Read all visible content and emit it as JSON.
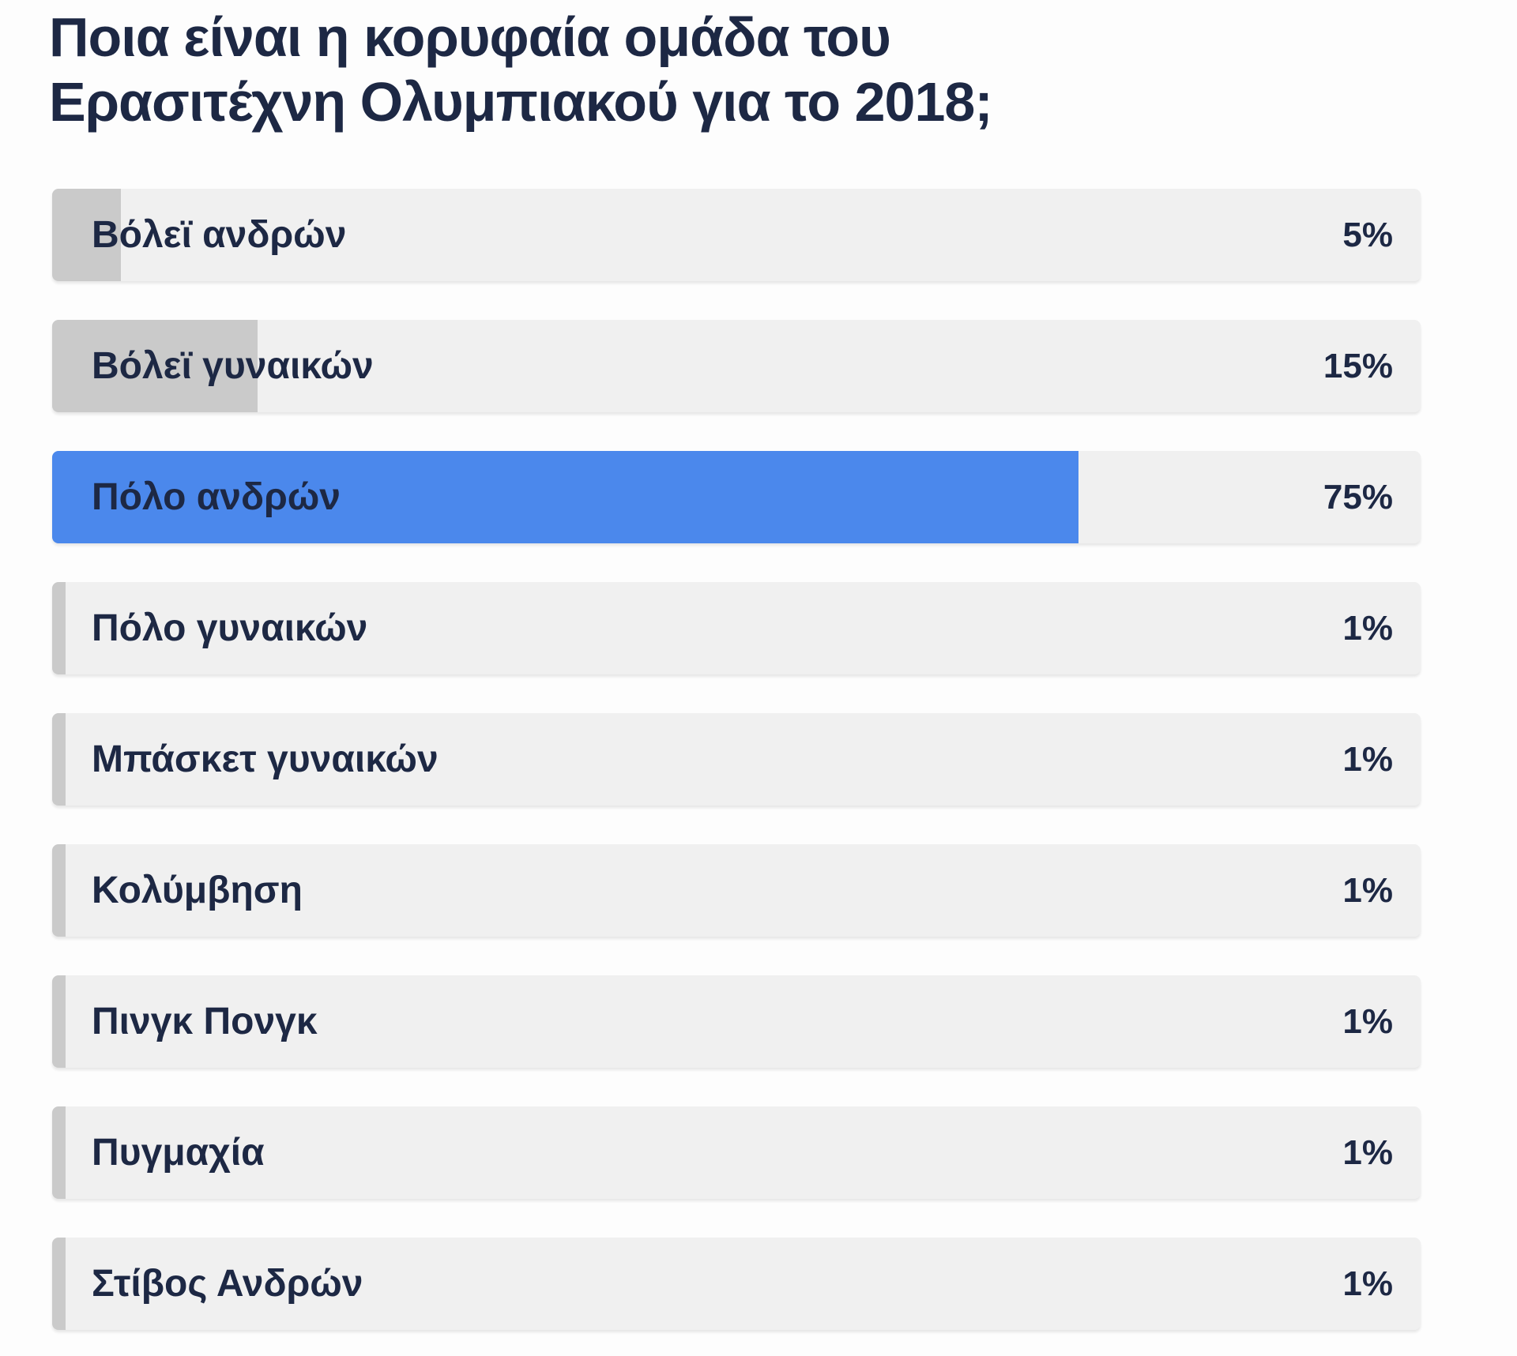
{
  "poll": {
    "title_lines": [
      "Ποια είναι η κορυφαία ομάδα του",
      "Ερασιτέχνη Ολυμπιακού για το 2018;"
    ],
    "options": [
      {
        "label": "Βόλεϊ ανδρών",
        "percent": 5,
        "percent_label": "5%",
        "highlighted": false
      },
      {
        "label": "Βόλεϊ γυναικών",
        "percent": 15,
        "percent_label": "15%",
        "highlighted": false
      },
      {
        "label": "Πόλο ανδρών",
        "percent": 75,
        "percent_label": "75%",
        "highlighted": true
      },
      {
        "label": "Πόλο γυναικών",
        "percent": 1,
        "percent_label": "1%",
        "highlighted": false
      },
      {
        "label": "Μπάσκετ γυναικών",
        "percent": 1,
        "percent_label": "1%",
        "highlighted": false
      },
      {
        "label": "Κολύμβηση",
        "percent": 1,
        "percent_label": "1%",
        "highlighted": false
      },
      {
        "label": "Πινγκ Πονγκ",
        "percent": 1,
        "percent_label": "1%",
        "highlighted": false
      },
      {
        "label": "Πυγμαχία",
        "percent": 1,
        "percent_label": "1%",
        "highlighted": false
      },
      {
        "label": "Στίβος Ανδρών",
        "percent": 1,
        "percent_label": "1%",
        "highlighted": false
      }
    ],
    "colors": {
      "accent": "#4b88ec",
      "bar_fill": "#cacaca",
      "bar_track": "#f0f0f0",
      "text": "#1d2844"
    }
  },
  "chart_data": {
    "type": "bar",
    "orientation": "horizontal",
    "title": "Ποια είναι η κορυφαία ομάδα του Ερασιτέχνη Ολυμπιακού για το 2018;",
    "categories": [
      "Βόλεϊ ανδρών",
      "Βόλεϊ γυναικών",
      "Πόλο ανδρών",
      "Πόλο γυναικών",
      "Μπάσκετ γυναικών",
      "Κολύμβηση",
      "Πινγκ Πονγκ",
      "Πυγμαχία",
      "Στίβος Ανδρών"
    ],
    "values": [
      5,
      15,
      75,
      1,
      1,
      1,
      1,
      1,
      1
    ],
    "data_labels": [
      "5%",
      "15%",
      "75%",
      "1%",
      "1%",
      "1%",
      "1%",
      "1%",
      "1%"
    ],
    "unit": "%",
    "xlim": [
      0,
      100
    ],
    "grid": false,
    "legend": false,
    "highlighted_category": "Πόλο ανδρών",
    "highlight_color": "#4b88ec",
    "default_bar_color": "#cacaca"
  }
}
